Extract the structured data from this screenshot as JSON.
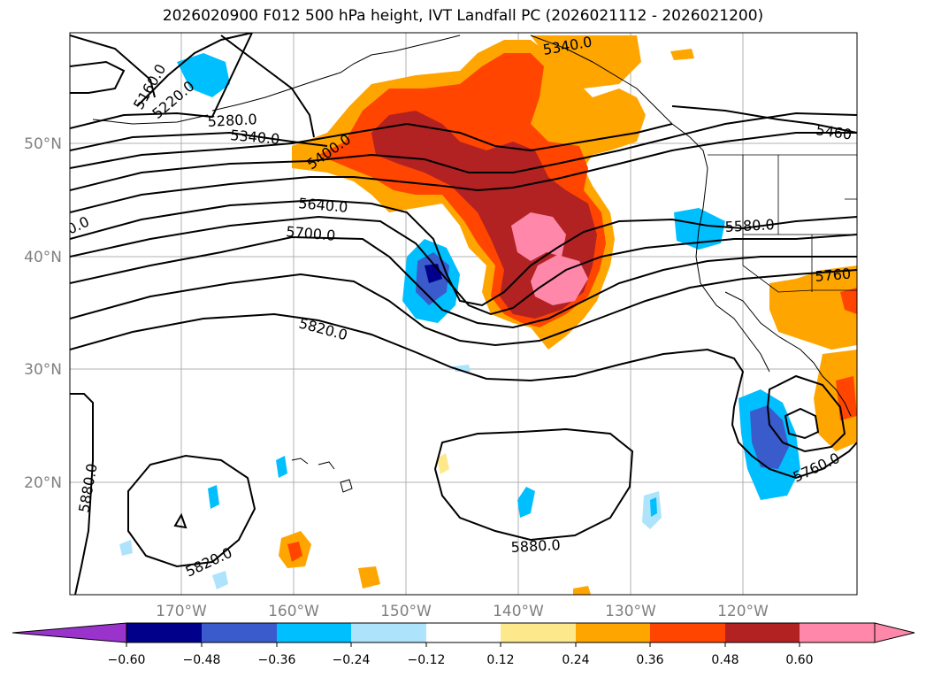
{
  "title": "2026020900 F012 500 hPa height, IVT Landfall PC (2026021112 - 2026021200)",
  "map": {
    "lat_ticks": [
      "50°N",
      "40°N",
      "30°N",
      "20°N"
    ],
    "lon_ticks": [
      "170°W",
      "160°W",
      "150°W",
      "140°W",
      "130°W",
      "120°W"
    ],
    "contour_labels": [
      "5160.0",
      "5220.0",
      "5280.0",
      "5340.0",
      "5400.0",
      "5460",
      "5640.0",
      "5700.0",
      "5580.0",
      "5760",
      "5820.0",
      "5880.0",
      "5820.0",
      "5880.0",
      "5760.0",
      "5340.0",
      "0.0"
    ]
  },
  "colorbar": {
    "ticks": [
      "−0.60",
      "−0.48",
      "−0.36",
      "−0.24",
      "−0.12",
      "0.12",
      "0.24",
      "0.36",
      "0.48",
      "0.60"
    ],
    "colors": [
      "#9933cc",
      "#00008b",
      "#3a5bcc",
      "#00bfff",
      "#ade3fb",
      "#ffffff",
      "#fde98b",
      "#ffa500",
      "#ff4500",
      "#b22222",
      "#ff88aa"
    ]
  }
}
